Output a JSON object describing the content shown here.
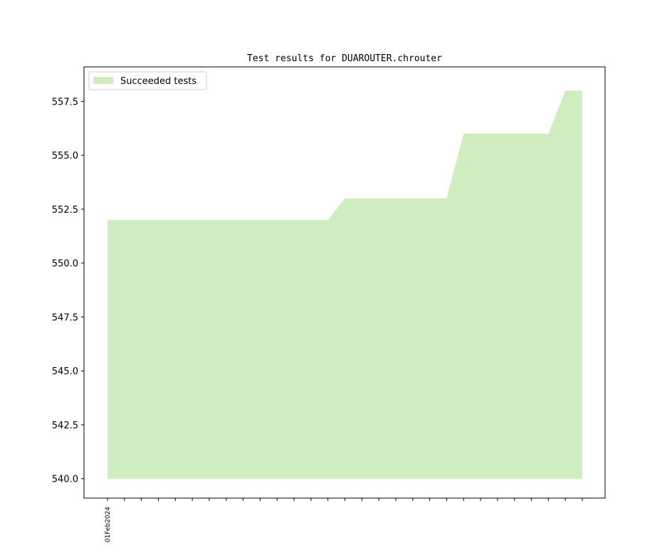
{
  "chart_data": {
    "type": "area",
    "title": "Test results for DUAROUTER.chrouter",
    "xlabel": "",
    "ylabel": "",
    "x_tick_labels": [
      "01Feb2024",
      "",
      "",
      "",
      "",
      "",
      "",
      "",
      "",
      "",
      "",
      "",
      "",
      "",
      "",
      "",
      "",
      "",
      "",
      "",
      "",
      "",
      "",
      "",
      "",
      "",
      "",
      "",
      ""
    ],
    "series": [
      {
        "name": "Succeeded tests",
        "color": "#cfedbf",
        "values": [
          552,
          552,
          552,
          552,
          552,
          552,
          552,
          552,
          552,
          552,
          552,
          552,
          552,
          552,
          553,
          553,
          553,
          553,
          553,
          553,
          553,
          556,
          556,
          556,
          556,
          556,
          556,
          558,
          558
        ]
      }
    ],
    "ylim": [
      539.1,
      559.1
    ],
    "y_ticks": [
      540.0,
      542.5,
      545.0,
      547.5,
      550.0,
      552.5,
      555.0,
      557.5
    ],
    "baseline": 540,
    "grid": false,
    "legend_position": "top-left"
  }
}
